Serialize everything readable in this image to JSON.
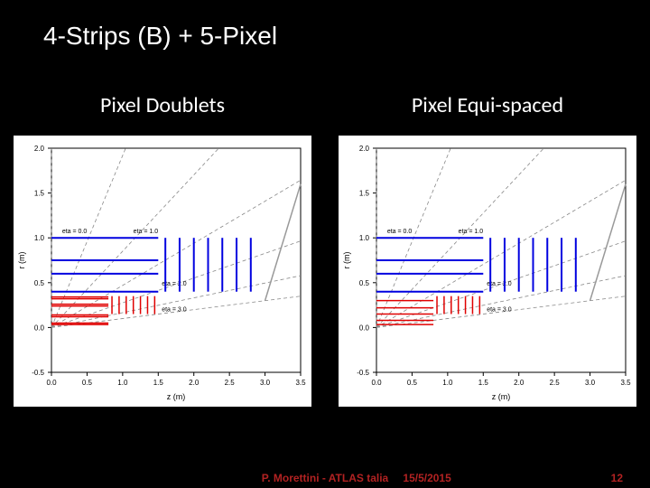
{
  "title": "4-Strips (B) + 5-Pixel",
  "left_panel_label": "Pixel Doublets",
  "right_panel_label": "Pixel Equi-spaced",
  "footer_author": "P. Morettini - ATLAS talia",
  "footer_date": "15/5/2015",
  "footer_page": "12",
  "chart_common": {
    "xlim": [
      0.0,
      3.5
    ],
    "ylim": [
      -0.5,
      2.0
    ],
    "xticks": [
      0.0,
      0.5,
      1.0,
      1.5,
      2.0,
      2.5,
      3.0,
      3.5
    ],
    "yticks": [
      -0.5,
      0.0,
      0.5,
      1.0,
      1.5,
      2.0
    ],
    "xlabel": "z (m)",
    "ylabel": "r (m)",
    "grid_color": "#cccccc",
    "axis_color": "#000000",
    "background_color": "#ffffff",
    "eta_lines": [
      0.0,
      1.0,
      2.0,
      3.0
    ],
    "eta_color": "#888888",
    "eta_dash": "4 3",
    "blue_layers_r": [
      0.4,
      0.6,
      0.75,
      1.0
    ],
    "blue_z_extent": 1.5,
    "blue_color": "#0000e0",
    "blue_line_width": 2,
    "blue_disks_z": [
      1.6,
      1.8,
      2.0,
      2.2,
      2.4,
      2.6,
      2.8
    ],
    "blue_disk_r_range": [
      0.4,
      1.0
    ],
    "endcap_line": {
      "x1": 3.0,
      "y1": 0.3,
      "x2": 3.5,
      "y2": 1.6
    },
    "endcap_color": "#999999",
    "red_color": "#e00000",
    "red_line_width": 1.5,
    "red_endcap_z": [
      0.85,
      0.95,
      1.05,
      1.15,
      1.25,
      1.35,
      1.45
    ],
    "red_endcap_r_range": [
      0.15,
      0.35
    ]
  },
  "left_chart": {
    "red_layers_r": [
      0.033,
      0.05,
      0.12,
      0.14,
      0.24,
      0.26,
      0.32,
      0.34
    ],
    "red_z_extent": 0.8
  },
  "right_chart": {
    "red_layers_r": [
      0.033,
      0.08,
      0.15,
      0.22,
      0.3
    ],
    "red_z_extent": 0.8
  },
  "axis_label_fontsize": 9,
  "tick_label_fontsize": 8
}
